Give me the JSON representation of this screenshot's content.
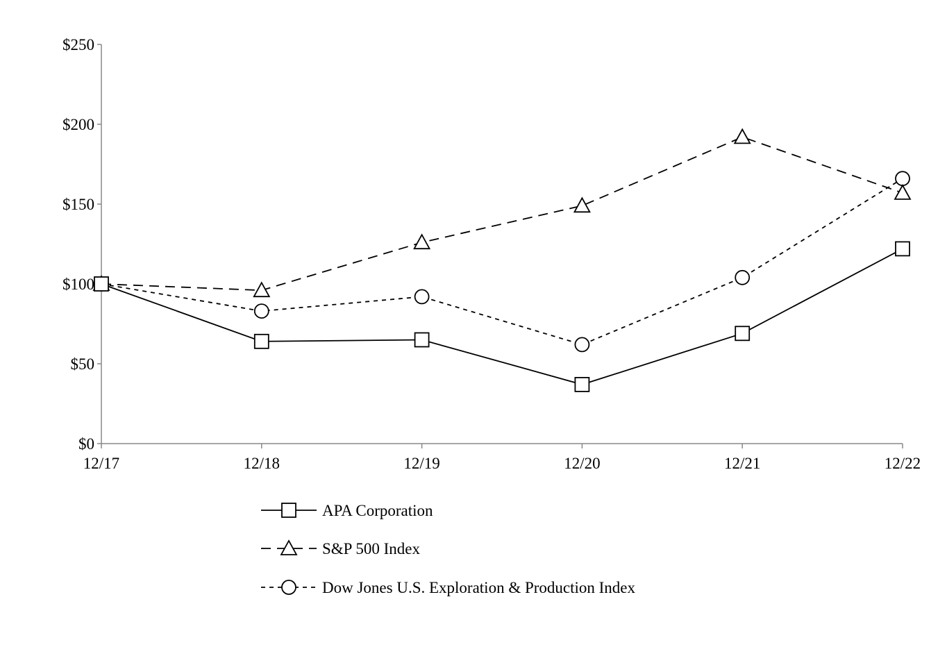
{
  "chart_data": {
    "type": "line",
    "title": "",
    "xlabel": "",
    "ylabel": "",
    "categories": [
      "12/17",
      "12/18",
      "12/19",
      "12/20",
      "12/21",
      "12/22"
    ],
    "y_ticks": [
      "$0",
      "$50",
      "$100",
      "$150",
      "$200",
      "$250"
    ],
    "y_tick_values": [
      0,
      50,
      100,
      150,
      200,
      250
    ],
    "ylim": [
      0,
      250
    ],
    "grid": false,
    "legend_position": "bottom",
    "series": [
      {
        "name": "APA Corporation",
        "marker": "square",
        "dash": "solid",
        "values": [
          100,
          64,
          65,
          37,
          69,
          122
        ]
      },
      {
        "name": "S&P 500 Index",
        "marker": "triangle",
        "dash": "long-dash",
        "values": [
          100,
          96,
          126,
          149,
          192,
          157
        ]
      },
      {
        "name": "Dow Jones U.S. Exploration & Production Index",
        "marker": "circle",
        "dash": "short-dash",
        "values": [
          100,
          83,
          92,
          62,
          104,
          166
        ]
      }
    ],
    "colors": {
      "line": "#000000",
      "axis": "#888888"
    }
  }
}
